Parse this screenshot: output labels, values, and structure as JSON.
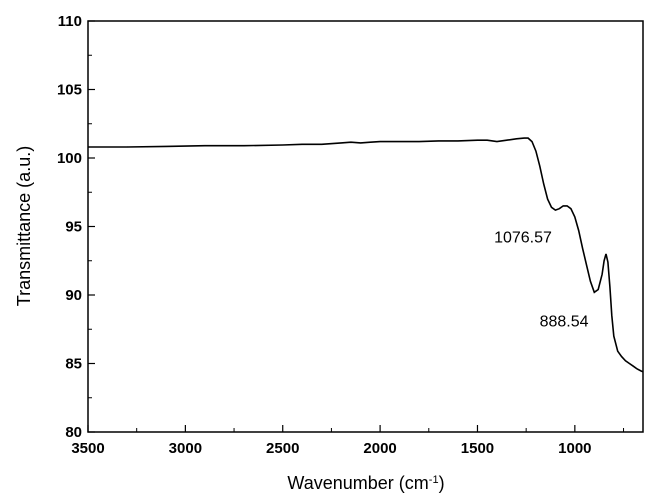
{
  "chart_data": {
    "type": "line",
    "title": "",
    "xlabel": "Wavenumber (cm",
    "xlabel_sup": "-1",
    "xlabel_close": ")",
    "ylabel": "Transmittance (a.u.)",
    "xlim": [
      3500,
      650
    ],
    "ylim": [
      80,
      110
    ],
    "x_reversed": true,
    "grid": false,
    "x_ticks": [
      3500,
      3000,
      2500,
      2000,
      1500,
      1000
    ],
    "y_ticks": [
      80,
      85,
      90,
      95,
      100,
      105,
      110
    ],
    "x_tick_labels": [
      "3500",
      "3000",
      "2500",
      "2000",
      "1500",
      "1000"
    ],
    "y_tick_labels": [
      "80",
      "85",
      "90",
      "95",
      "100",
      "105",
      "110"
    ],
    "series": [
      {
        "color": "#000000",
        "x": [
          3500,
          3300,
          3100,
          2900,
          2700,
          2500,
          2400,
          2300,
          2200,
          2150,
          2100,
          2050,
          2000,
          1950,
          1900,
          1800,
          1700,
          1600,
          1500,
          1450,
          1400,
          1350,
          1300,
          1260,
          1240,
          1220,
          1200,
          1180,
          1160,
          1140,
          1120,
          1100,
          1080,
          1060,
          1040,
          1020,
          1000,
          980,
          960,
          940,
          920,
          900,
          880,
          860,
          850,
          840,
          830,
          820,
          810,
          800,
          780,
          760,
          740,
          720,
          700,
          680,
          660,
          650
        ],
        "y": [
          100.8,
          100.8,
          100.85,
          100.9,
          100.9,
          100.95,
          101.0,
          101.0,
          101.1,
          101.15,
          101.1,
          101.15,
          101.2,
          101.2,
          101.2,
          101.2,
          101.25,
          101.25,
          101.3,
          101.3,
          101.2,
          101.3,
          101.4,
          101.45,
          101.45,
          101.2,
          100.5,
          99.4,
          98.1,
          97.0,
          96.4,
          96.2,
          96.3,
          96.5,
          96.5,
          96.3,
          95.7,
          94.7,
          93.4,
          92.2,
          91.0,
          90.2,
          90.4,
          91.5,
          92.5,
          93.0,
          92.4,
          90.6,
          88.5,
          87.0,
          85.9,
          85.5,
          85.2,
          85.0,
          84.8,
          84.6,
          84.45,
          84.4
        ]
      }
    ],
    "annotations": [
      {
        "text": "1076.57",
        "x": 1076.57,
        "y": 96.3
      },
      {
        "text": "888.54",
        "x": 888.54,
        "y": 90.2
      }
    ]
  }
}
